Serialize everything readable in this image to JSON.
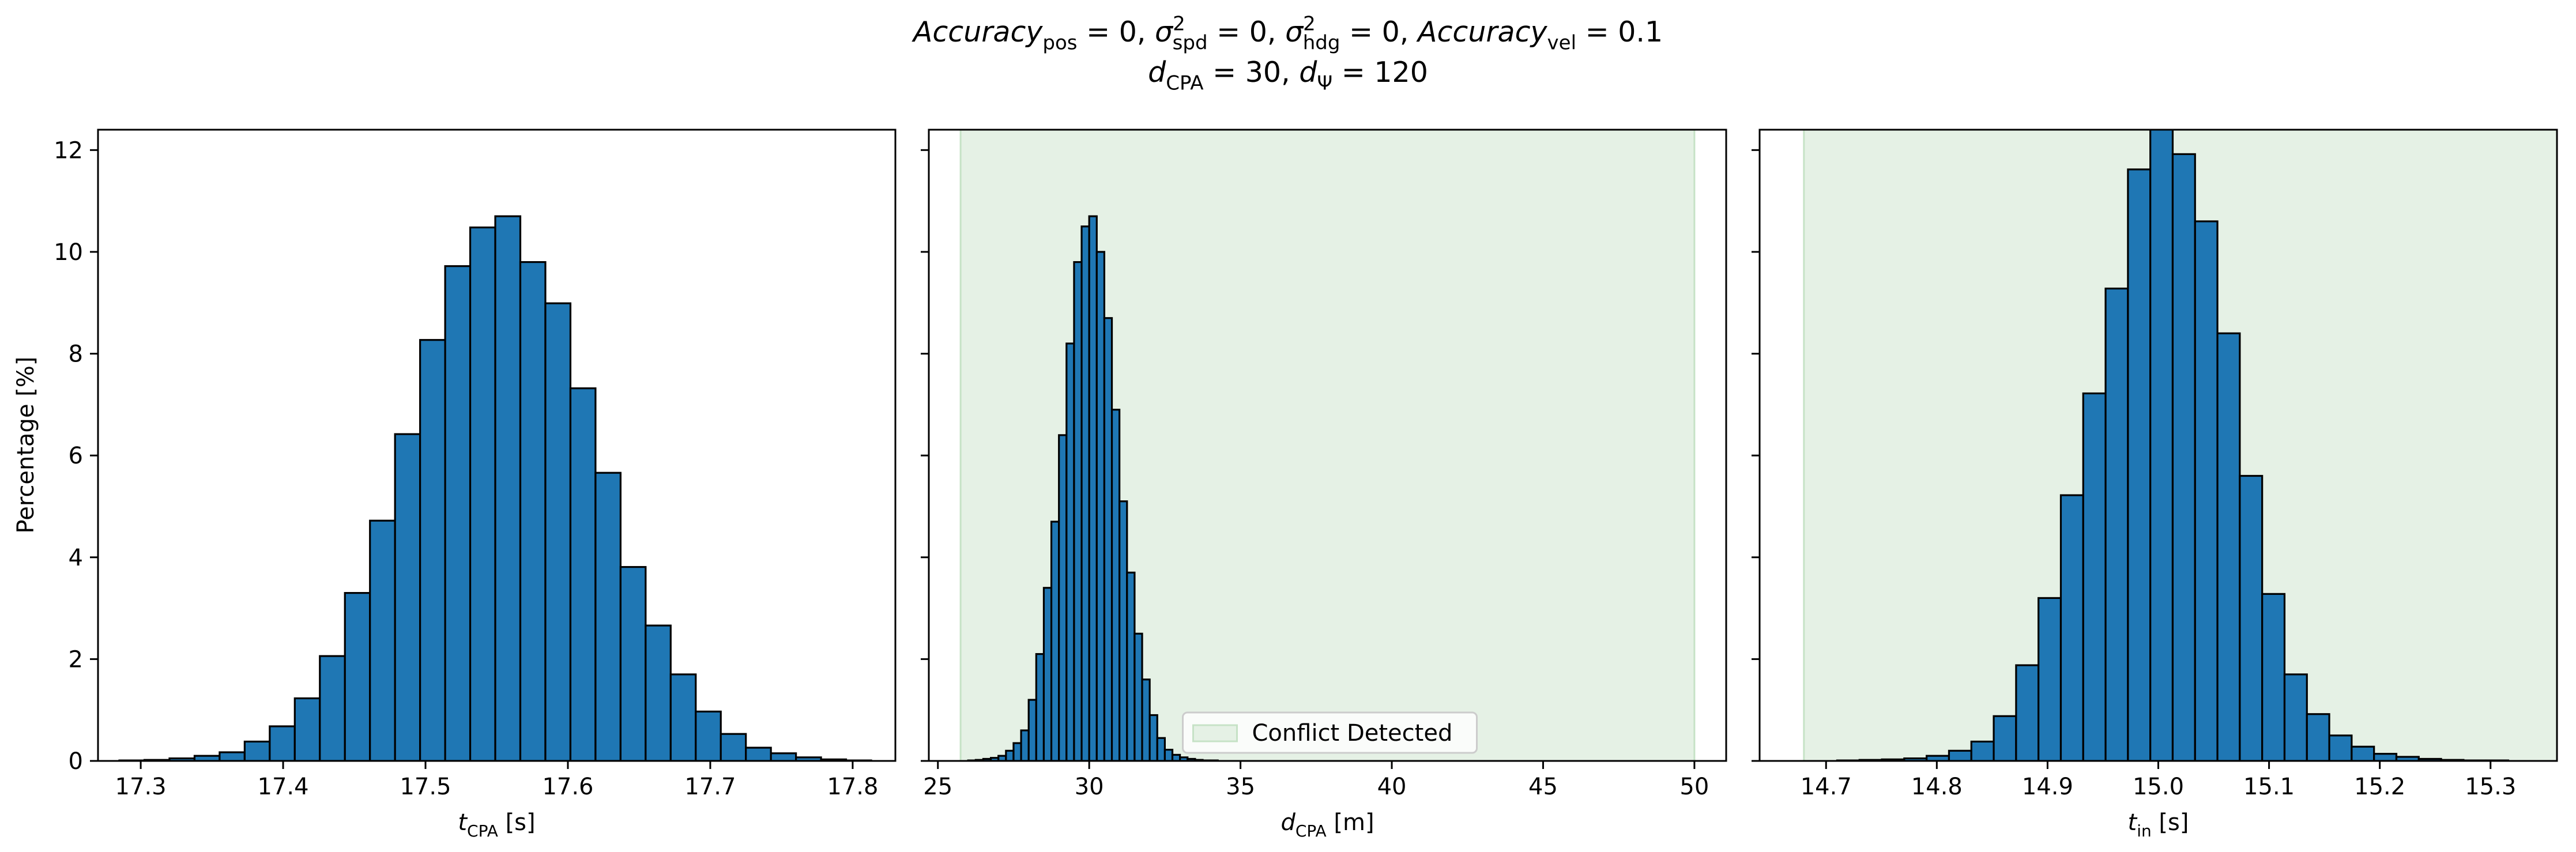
{
  "figure": {
    "title_line1_parts": [
      {
        "t": "Accuracy",
        "style": "italic"
      },
      {
        "t": "pos",
        "style": "sub"
      },
      {
        "t": " = 0, ",
        "style": "normal"
      },
      {
        "t": "σ",
        "style": "italic"
      },
      {
        "t": "2",
        "style": "sup"
      },
      {
        "t": "spd",
        "style": "sub"
      },
      {
        "t": " = 0, ",
        "style": "normal"
      },
      {
        "t": "σ",
        "style": "italic"
      },
      {
        "t": "2",
        "style": "sup"
      },
      {
        "t": "hdg",
        "style": "sub"
      },
      {
        "t": " = 0, ",
        "style": "normal"
      },
      {
        "t": "Accuracy",
        "style": "italic"
      },
      {
        "t": "vel",
        "style": "sub"
      },
      {
        "t": " = 0.1",
        "style": "normal"
      }
    ],
    "title_line2_parts": [
      {
        "t": "d",
        "style": "italic"
      },
      {
        "t": "CPA",
        "style": "sub"
      },
      {
        "t": " = 30, ",
        "style": "normal"
      },
      {
        "t": "d",
        "style": "italic"
      },
      {
        "t": "Ψ",
        "style": "sub"
      },
      {
        "t": " = 120",
        "style": "normal"
      }
    ],
    "ylabel": "Percentage [%]"
  },
  "colors": {
    "bar_fill": "#1f77b4",
    "bar_edge": "#000000",
    "conflict_fill": "#e5f1e5",
    "conflict_edge": "#c6e2c6"
  },
  "chart_data": [
    {
      "type": "bar",
      "xlabel_parts": [
        {
          "t": "t",
          "style": "italic"
        },
        {
          "t": "CPA",
          "style": "sub"
        },
        {
          "t": " [s]",
          "style": "normal"
        }
      ],
      "ylabel": "Percentage [%]",
      "xlim": [
        17.27,
        17.83
      ],
      "ylim": [
        0,
        12.4
      ],
      "xticks": [
        17.3,
        17.4,
        17.5,
        17.6,
        17.7,
        17.8
      ],
      "xtick_labels": [
        "17.3",
        "17.4",
        "17.5",
        "17.6",
        "17.7",
        "17.8"
      ],
      "yticks": [
        0,
        2,
        4,
        6,
        8,
        10,
        12
      ],
      "ytick_labels": [
        "0",
        "2",
        "4",
        "6",
        "8",
        "10",
        "12"
      ],
      "bin_edges": [
        17.285,
        17.3026,
        17.3202,
        17.3378,
        17.3554,
        17.373,
        17.3906,
        17.4082,
        17.4258,
        17.4434,
        17.461,
        17.4786,
        17.4962,
        17.5138,
        17.5314,
        17.549,
        17.5666,
        17.5842,
        17.6018,
        17.6194,
        17.637,
        17.6546,
        17.6722,
        17.6898,
        17.7074,
        17.725,
        17.7426,
        17.7602,
        17.7778,
        17.7954,
        17.813
      ],
      "values": [
        0.01,
        0.02,
        0.05,
        0.1,
        0.17,
        0.38,
        0.68,
        1.23,
        2.06,
        3.3,
        4.72,
        6.42,
        8.27,
        9.72,
        10.48,
        10.7,
        9.8,
        8.99,
        7.32,
        5.66,
        3.81,
        2.66,
        1.7,
        0.97,
        0.53,
        0.26,
        0.15,
        0.07,
        0.03,
        0.01
      ],
      "show_ytick_labels": true,
      "conflict_band": null,
      "legend": null
    },
    {
      "type": "bar",
      "xlabel_parts": [
        {
          "t": "d",
          "style": "italic"
        },
        {
          "t": "CPA",
          "style": "sub"
        },
        {
          "t": " [m]",
          "style": "normal"
        }
      ],
      "xlim": [
        24.7,
        51.05
      ],
      "ylim": [
        0,
        12.4
      ],
      "xticks": [
        25,
        30,
        35,
        40,
        45,
        50
      ],
      "xtick_labels": [
        "25",
        "30",
        "35",
        "40",
        "45",
        "50"
      ],
      "yticks": [
        0,
        2,
        4,
        6,
        8,
        10,
        12
      ],
      "ytick_labels": [
        "0",
        "2",
        "4",
        "6",
        "8",
        "10",
        "12"
      ],
      "bin_edges": [
        25.75,
        26.0,
        26.25,
        26.5,
        26.75,
        27.0,
        27.25,
        27.5,
        27.75,
        28.0,
        28.25,
        28.5,
        28.75,
        29.0,
        29.25,
        29.5,
        29.75,
        30.0,
        30.25,
        30.5,
        30.75,
        31.0,
        31.25,
        31.5,
        31.75,
        32.0,
        32.25,
        32.5,
        32.75,
        33.0,
        33.25,
        33.5,
        33.75,
        34.0,
        34.25,
        34.5
      ],
      "values": [
        0.0,
        0.01,
        0.02,
        0.04,
        0.06,
        0.1,
        0.2,
        0.35,
        0.6,
        1.2,
        2.1,
        3.4,
        4.7,
        6.4,
        8.2,
        9.8,
        10.5,
        10.7,
        10.0,
        8.7,
        6.9,
        5.1,
        3.7,
        2.5,
        1.6,
        0.9,
        0.45,
        0.22,
        0.12,
        0.07,
        0.04,
        0.02,
        0.01,
        0.01,
        0.0
      ],
      "show_ytick_labels": false,
      "conflict_band": [
        25.75,
        50.0
      ],
      "legend": {
        "label": "Conflict Detected",
        "position": "lower center"
      }
    },
    {
      "type": "bar",
      "xlabel_parts": [
        {
          "t": "t",
          "style": "italic"
        },
        {
          "t": "in",
          "style": "sub"
        },
        {
          "t": " [s]",
          "style": "normal"
        }
      ],
      "xlim": [
        14.64,
        15.36
      ],
      "ylim": [
        0,
        12.4
      ],
      "xticks": [
        14.7,
        14.8,
        14.9,
        15.0,
        15.1,
        15.2,
        15.3
      ],
      "xtick_labels": [
        "14.7",
        "14.8",
        "14.9",
        "15.0",
        "15.1",
        "15.2",
        "15.3"
      ],
      "yticks": [
        0,
        2,
        4,
        6,
        8,
        10,
        12
      ],
      "ytick_labels": [
        "0",
        "2",
        "4",
        "6",
        "8",
        "10",
        "12"
      ],
      "bin_edges": [
        14.71,
        14.7302,
        14.7504,
        14.7706,
        14.7908,
        14.811,
        14.8312,
        14.8514,
        14.8716,
        14.8918,
        14.912,
        14.9322,
        14.9524,
        14.9726,
        14.9928,
        15.013,
        15.0332,
        15.0534,
        15.0736,
        15.0938,
        15.114,
        15.1342,
        15.1544,
        15.1746,
        15.1948,
        15.215,
        15.2352,
        15.2554,
        15.2756,
        15.2958,
        15.316
      ],
      "values": [
        0.01,
        0.02,
        0.03,
        0.05,
        0.1,
        0.2,
        0.38,
        0.88,
        1.88,
        3.2,
        5.22,
        7.22,
        9.28,
        11.62,
        12.45,
        11.92,
        10.6,
        8.4,
        5.6,
        3.28,
        1.7,
        0.92,
        0.5,
        0.28,
        0.14,
        0.08,
        0.04,
        0.02,
        0.01,
        0.01
      ],
      "show_ytick_labels": false,
      "conflict_band": [
        14.68,
        15.36
      ],
      "legend": null
    }
  ]
}
